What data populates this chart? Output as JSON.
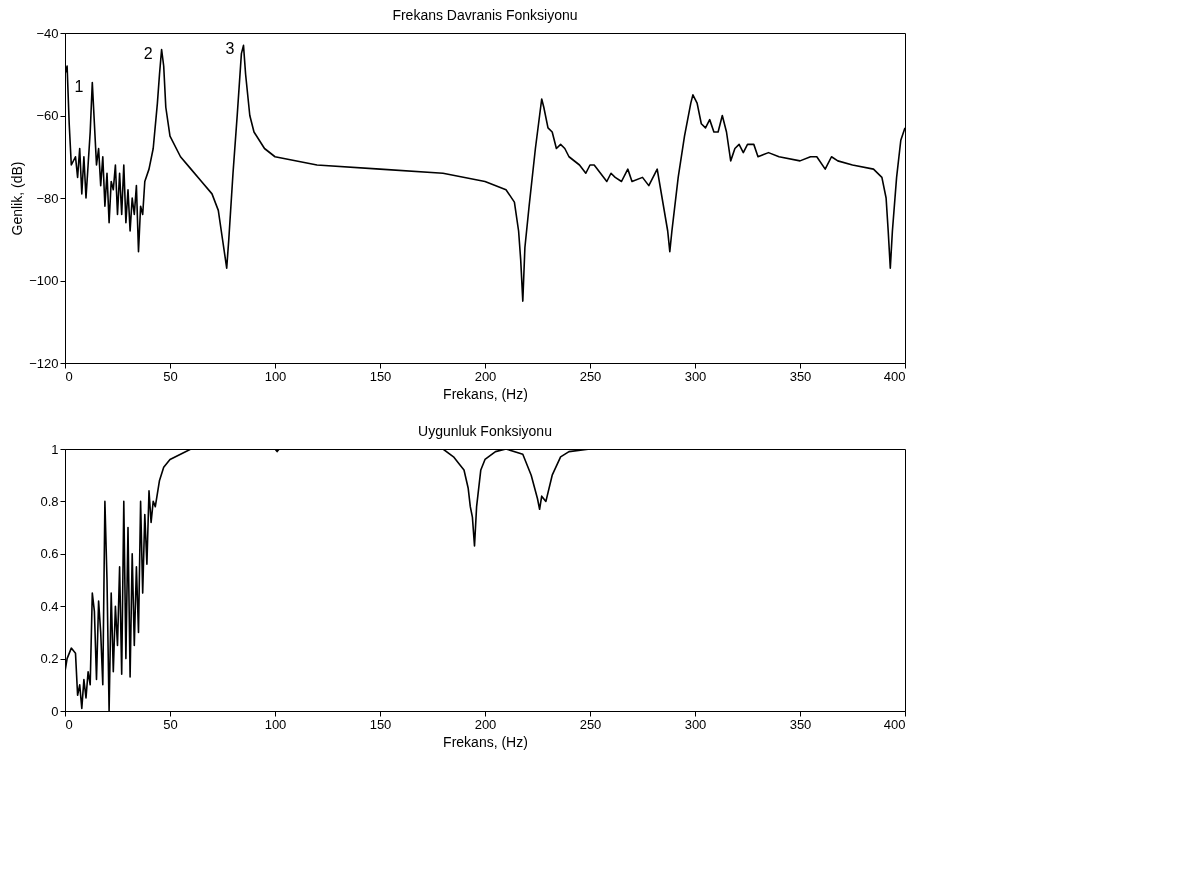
{
  "chart_data": [
    {
      "type": "line",
      "title": "Frekans Davranis Fonksiyonu",
      "xlabel": "Frekans, (Hz)",
      "ylabel": "Genlik, (dB)",
      "xlim": [
        0,
        400
      ],
      "xticks": [
        0,
        50,
        100,
        150,
        200,
        250,
        300,
        350,
        400
      ],
      "ylim": [
        -120,
        -40
      ],
      "yticks": [
        -120,
        -100,
        -80,
        -60,
        -40
      ],
      "grid": false,
      "marker": "none",
      "line_style": "solid",
      "annotations": [
        {
          "text": "1",
          "x": 13,
          "y": -52
        },
        {
          "text": "2",
          "x": 46,
          "y": -44
        },
        {
          "text": "3",
          "x": 85,
          "y": -43
        }
      ],
      "series": [
        {
          "color": "#000000",
          "x": [
            0,
            1,
            2,
            3,
            5,
            6,
            7,
            8,
            9,
            10,
            11,
            12,
            13,
            14,
            15,
            16,
            17,
            18,
            19,
            20,
            21,
            22,
            23,
            24,
            25,
            26,
            27,
            28,
            29,
            30,
            31,
            32,
            33,
            34,
            35,
            36,
            37,
            38,
            40,
            42,
            44,
            45,
            46,
            47,
            48,
            50,
            55,
            60,
            65,
            70,
            73,
            75,
            77,
            78,
            80,
            82,
            84,
            85,
            86,
            88,
            90,
            95,
            100,
            120,
            150,
            180,
            200,
            210,
            214,
            216,
            217,
            218,
            219,
            221,
            224,
            226,
            227,
            228,
            230,
            232,
            234,
            236,
            238,
            240,
            245,
            248,
            250,
            252,
            255,
            258,
            260,
            262,
            265,
            268,
            270,
            275,
            278,
            282,
            285,
            287,
            288,
            289,
            292,
            295,
            298,
            299,
            301,
            303,
            305,
            307,
            309,
            311,
            313,
            315,
            317,
            319,
            321,
            323,
            325,
            328,
            330,
            335,
            340,
            350,
            355,
            358,
            362,
            365,
            368,
            375,
            385,
            389,
            391,
            392,
            393,
            394,
            396,
            398,
            400
          ],
          "values": [
            -50,
            -48,
            -62,
            -72,
            -70,
            -75,
            -68,
            -79,
            -70,
            -80,
            -72,
            -64,
            -52,
            -62,
            -72,
            -68,
            -77,
            -70,
            -82,
            -74,
            -86,
            -76,
            -78,
            -72,
            -84,
            -74,
            -84,
            -72,
            -86,
            -78,
            -88,
            -80,
            -84,
            -77,
            -93,
            -82,
            -84,
            -76,
            -73,
            -68,
            -57,
            -50,
            -44,
            -48,
            -58,
            -65,
            -70,
            -73,
            -76,
            -79,
            -83,
            -90,
            -97,
            -90,
            -74,
            -60,
            -45,
            -43,
            -50,
            -60,
            -64,
            -68,
            -70,
            -72,
            -73,
            -74,
            -76,
            -78,
            -81,
            -88,
            -95,
            -105,
            -92,
            -82,
            -68,
            -60,
            -56,
            -58,
            -63,
            -64,
            -68,
            -67,
            -68,
            -70,
            -72,
            -74,
            -72,
            -72,
            -74,
            -76,
            -74,
            -75,
            -76,
            -73,
            -76,
            -75,
            -77,
            -73,
            -82,
            -88,
            -93,
            -88,
            -75,
            -65,
            -57,
            -55,
            -57,
            -62,
            -63,
            -61,
            -64,
            -64,
            -60,
            -64,
            -71,
            -68,
            -67,
            -69,
            -67,
            -67,
            -70,
            -69,
            -70,
            -71,
            -70,
            -70,
            -73,
            -70,
            -71,
            -72,
            -73,
            -75,
            -80,
            -88,
            -97,
            -88,
            -75,
            -66,
            -63
          ]
        }
      ]
    },
    {
      "type": "line",
      "title": "Uygunluk Fonksiyonu",
      "xlabel": "Frekans, (Hz)",
      "xlim": [
        0,
        400
      ],
      "xticks": [
        0,
        50,
        100,
        150,
        200,
        250,
        300,
        350,
        400
      ],
      "ylim": [
        0,
        1
      ],
      "yticks": [
        0,
        0.2,
        0.4,
        0.6,
        0.8,
        1
      ],
      "grid": false,
      "marker": "none",
      "line_style": "solid",
      "series": [
        {
          "color": "#000000",
          "x": [
            0,
            1,
            3,
            5,
            6,
            7,
            8,
            9,
            10,
            11,
            12,
            13,
            14,
            15,
            16,
            17,
            18,
            19,
            20,
            21,
            22,
            23,
            24,
            25,
            26,
            27,
            28,
            29,
            30,
            31,
            32,
            33,
            34,
            35,
            36,
            37,
            38,
            39,
            40,
            41,
            42,
            43,
            45,
            47,
            50,
            55,
            60,
            100,
            101,
            102,
            180,
            185,
            188,
            190,
            192,
            193,
            194,
            195,
            196,
            198,
            200,
            205,
            210,
            218,
            222,
            225,
            226,
            227,
            229,
            232,
            236,
            240,
            250,
            400
          ],
          "values": [
            0.15,
            0.2,
            0.24,
            0.22,
            0.06,
            0.1,
            0.01,
            0.12,
            0.05,
            0.15,
            0.1,
            0.45,
            0.38,
            0.12,
            0.42,
            0.3,
            0.1,
            0.8,
            0.5,
            0.0,
            0.45,
            0.15,
            0.4,
            0.25,
            0.55,
            0.14,
            0.8,
            0.2,
            0.7,
            0.13,
            0.6,
            0.25,
            0.55,
            0.3,
            0.8,
            0.45,
            0.75,
            0.56,
            0.84,
            0.72,
            0.8,
            0.78,
            0.88,
            0.93,
            0.96,
            0.98,
            1.0,
            1.0,
            0.99,
            1.0,
            1.0,
            0.97,
            0.94,
            0.92,
            0.85,
            0.78,
            0.74,
            0.63,
            0.78,
            0.92,
            0.96,
            0.99,
            1.0,
            0.98,
            0.9,
            0.81,
            0.77,
            0.82,
            0.8,
            0.9,
            0.97,
            0.99,
            1.0,
            1.0
          ]
        }
      ]
    }
  ]
}
